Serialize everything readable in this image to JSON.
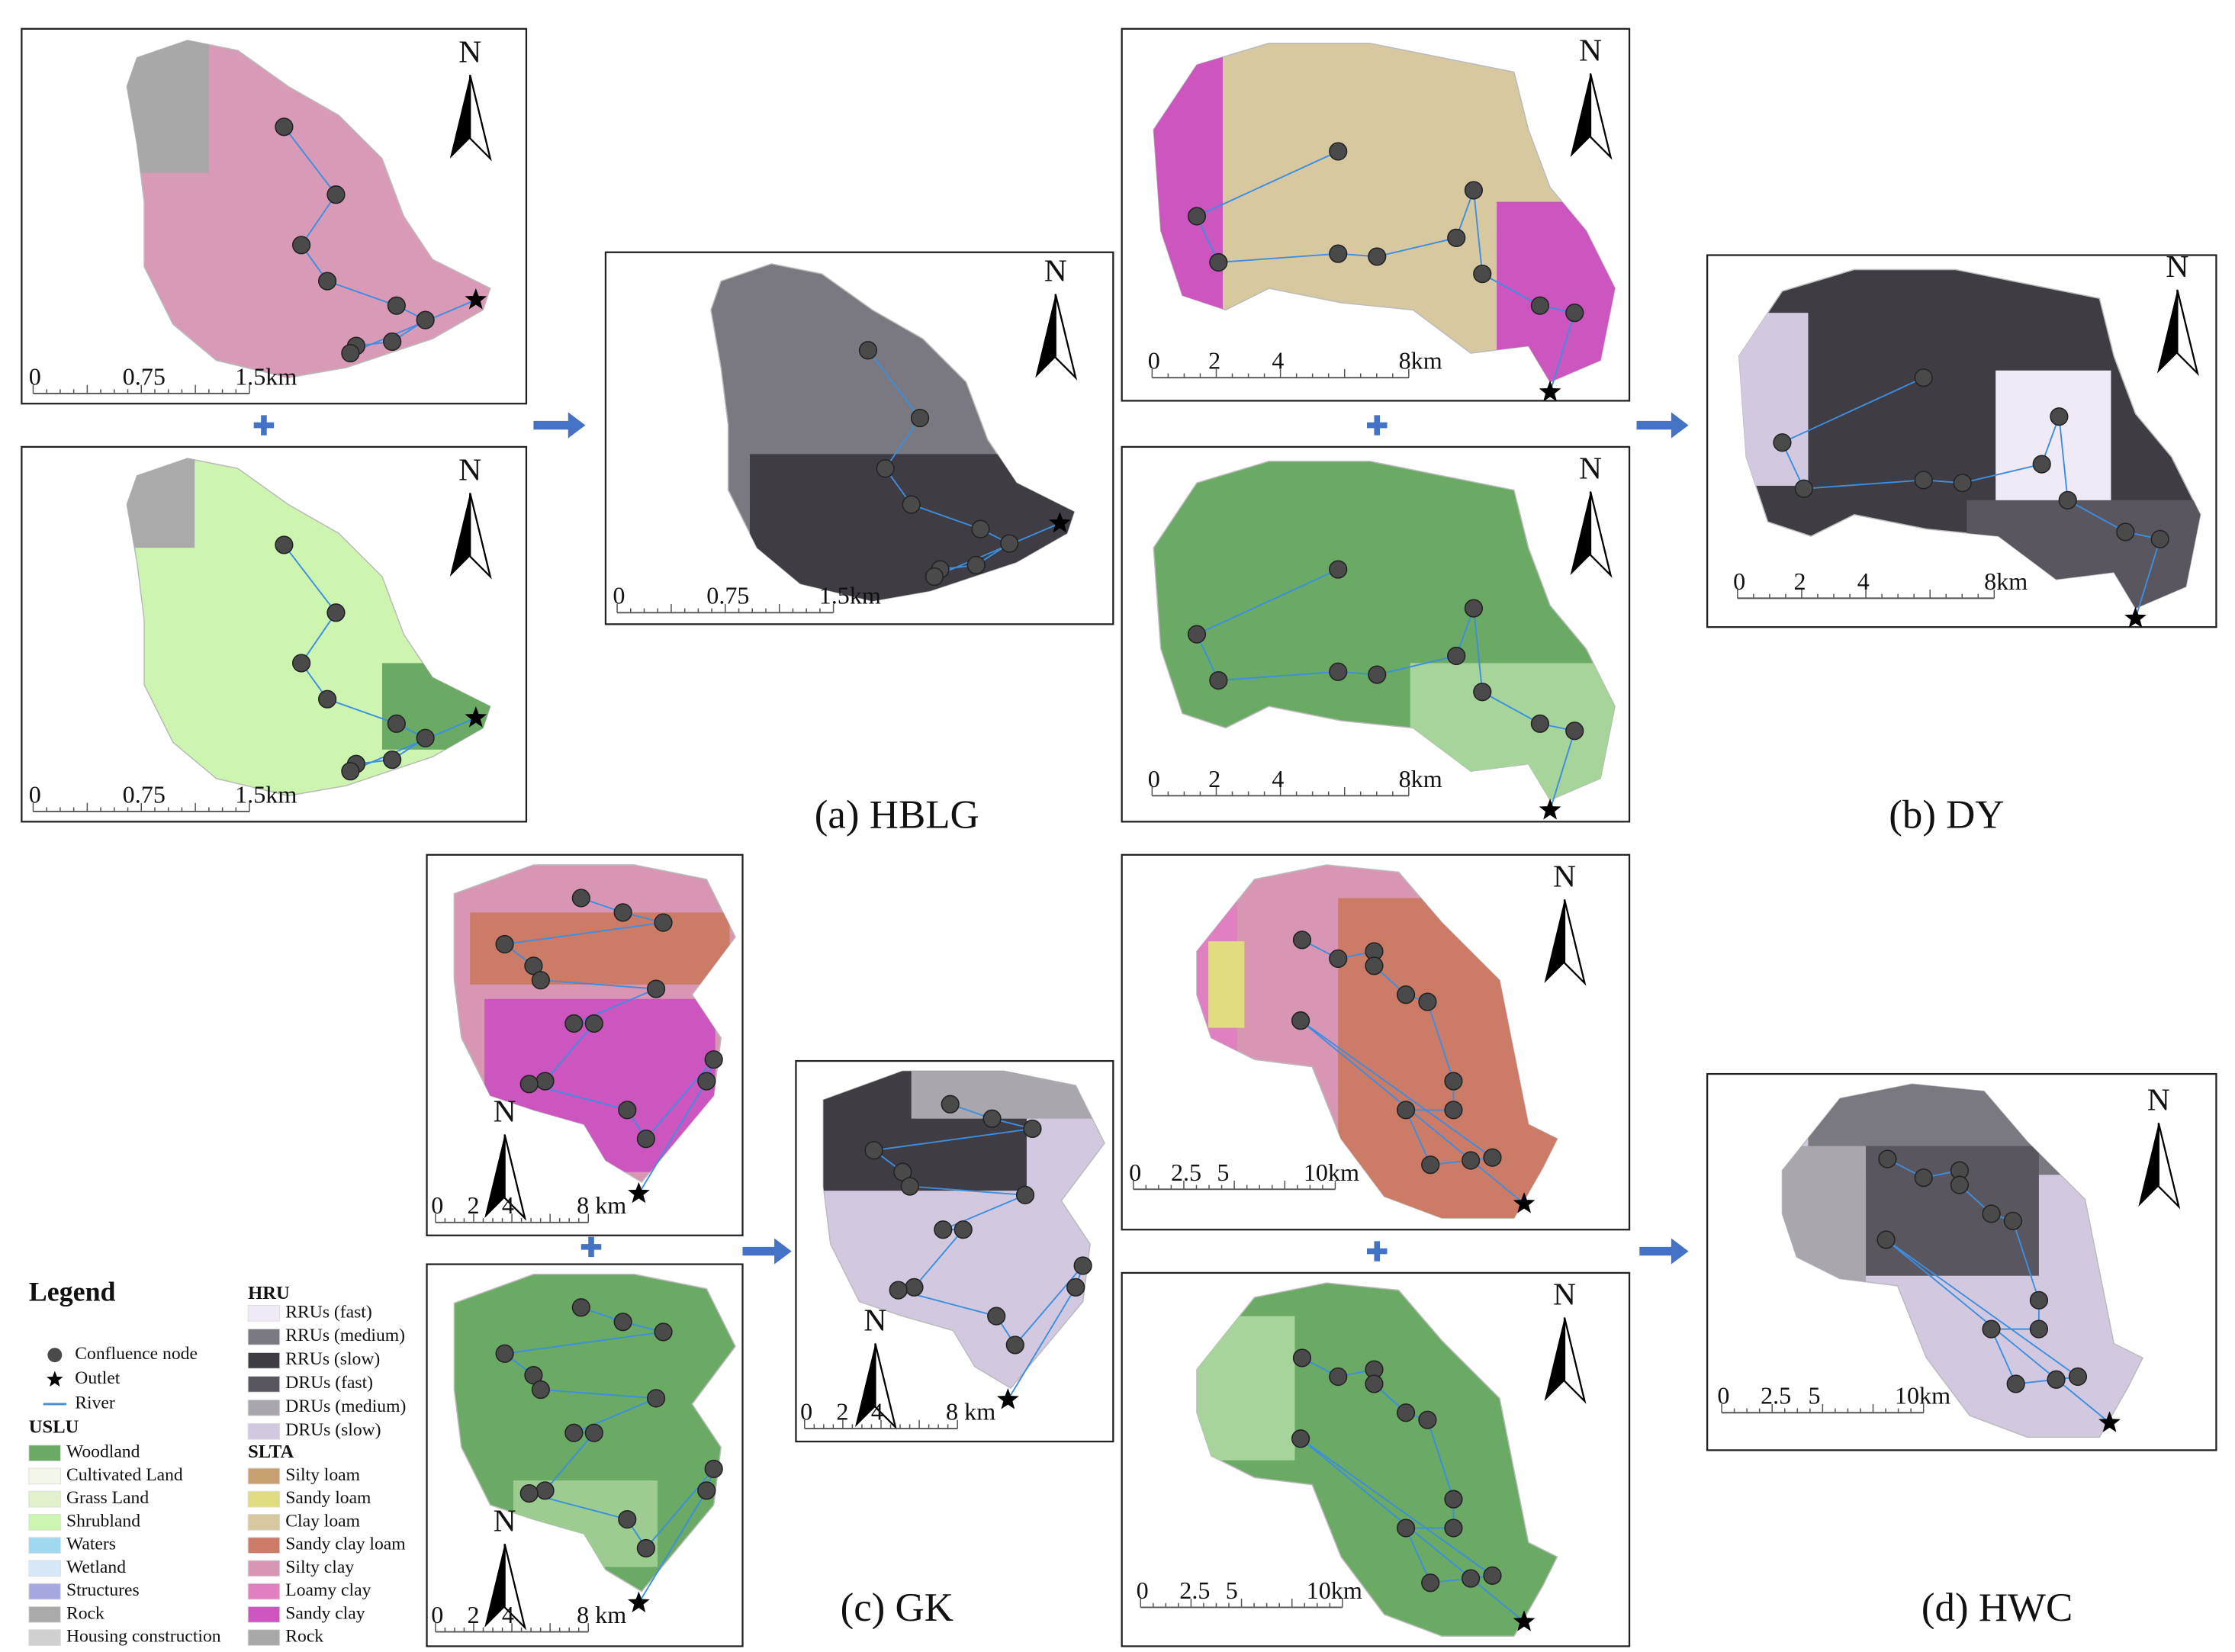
{
  "captions": [
    "(a) HBLG",
    "(b) DY",
    "(c) GK",
    "(d) HWC"
  ],
  "panels": [
    {
      "north": "N",
      "scale_labels": [
        "0",
        "0.75",
        "1.5km"
      ]
    },
    {
      "north": "N",
      "scale_labels": [
        "0",
        "0.75",
        "1.5km"
      ]
    },
    {
      "north": "N",
      "scale_labels": [
        "0",
        "0.75",
        "1.5km"
      ]
    },
    {
      "north": "N",
      "scale_labels": [
        "0",
        "2",
        "4",
        "8km"
      ]
    },
    {
      "north": "N",
      "scale_labels": [
        "0",
        "2",
        "4",
        "8km"
      ]
    },
    {
      "north": "N",
      "scale_labels": [
        "0",
        "2",
        "4",
        "8km"
      ]
    },
    {
      "north": "N",
      "scale_labels": [
        "0",
        "2",
        "4",
        "8 km"
      ]
    },
    {
      "north": "N",
      "scale_labels": [
        "0",
        "2",
        "4",
        "8 km"
      ]
    },
    {
      "north": "N",
      "scale_labels": [
        "0",
        "2",
        "4",
        "8 km"
      ]
    },
    {
      "north": "N",
      "scale_labels": [
        "0",
        "2.5",
        "5",
        "10km"
      ]
    },
    {
      "north": "N",
      "scale_labels": [
        "0",
        "2.5",
        "5",
        "10km"
      ]
    },
    {
      "north": "N",
      "scale_labels": [
        "0",
        "2.5",
        "5",
        "10km"
      ]
    }
  ],
  "legend": {
    "title": "Legend",
    "symbols": [
      "Confluence node",
      "Outlet",
      "River"
    ],
    "groups": [
      {
        "title": "USLU",
        "items": [
          {
            "label": "Woodland",
            "color": "#6aaa64"
          },
          {
            "label": "Cultivated Land",
            "color": "#f2f7ea"
          },
          {
            "label": "Grass Land",
            "color": "#e2f0cc"
          },
          {
            "label": "Shrubland",
            "color": "#ccf5b0"
          },
          {
            "label": "Waters",
            "color": "#a0d8f0"
          },
          {
            "label": "Wetland",
            "color": "#d8e8f8"
          },
          {
            "label": "Structures",
            "color": "#a8a8e0"
          },
          {
            "label": "Rock",
            "color": "#aaaaaa"
          },
          {
            "label": "Housing construction",
            "color": "#d0d0d0"
          }
        ]
      },
      {
        "title": "HRU",
        "items": [
          {
            "label": "RRUs (fast)",
            "color": "#f0eaf6"
          },
          {
            "label": "RRUs (medium)",
            "color": "#7a7880"
          },
          {
            "label": "RRUs (slow)",
            "color": "#3f3c44"
          },
          {
            "label": "DRUs (fast)",
            "color": "#5a5660"
          },
          {
            "label": "DRUs (medium)",
            "color": "#a9a7ad"
          },
          {
            "label": "DRUs (slow)",
            "color": "#d2c8e0"
          }
        ]
      },
      {
        "title": "SLTA",
        "items": [
          {
            "label": "Silty loam",
            "color": "#c8a070"
          },
          {
            "label": "Sandy loam",
            "color": "#e0dc80"
          },
          {
            "label": "Clay loam",
            "color": "#d8c8a0"
          },
          {
            "label": "Sandy clay loam",
            "color": "#cc7b66"
          },
          {
            "label": "Silty clay",
            "color": "#d896b4"
          },
          {
            "label": "Loamy clay",
            "color": "#e080c0"
          },
          {
            "label": "Sandy clay",
            "color": "#cc55c0"
          },
          {
            "label": "Rock",
            "color": "#a8a8a8"
          }
        ]
      }
    ]
  }
}
